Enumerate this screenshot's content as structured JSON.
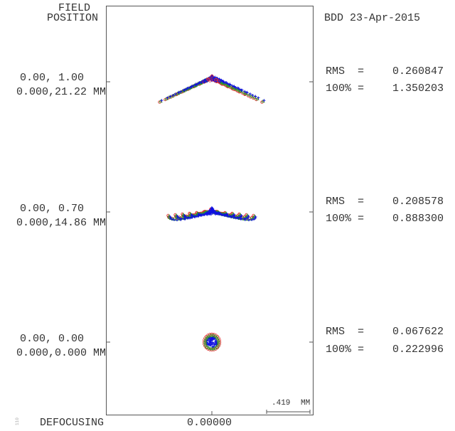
{
  "header": {
    "field_label_1": "FIELD",
    "field_label_2": "POSITION",
    "stamp": "BDD 23-Apr-2015"
  },
  "fields": [
    {
      "position": "0.00, 1.00",
      "coords": "0.000,21.22 MM",
      "rms_label": "RMS",
      "rms": "0.260847",
      "full_label": "100%",
      "full": "1.350203"
    },
    {
      "position": "0.00, 0.70",
      "coords": "0.000,14.86 MM",
      "rms_label": "RMS",
      "rms": "0.208578",
      "full_label": "100%",
      "full": "0.888300"
    },
    {
      "position": "0.00, 0.00",
      "coords": "0.000,0.000 MM",
      "rms_label": "RMS",
      "rms": "0.067622",
      "full_label": "100%",
      "full": "0.222996"
    }
  ],
  "eq": "=",
  "scale": {
    "value": ".419",
    "unit": "MM"
  },
  "footer": {
    "defocusing_label": "DEFOCUSING",
    "defocusing_value": "0.00000",
    "side_code": "110"
  },
  "colors": {
    "wave1": "#e03030",
    "wave2": "#2a9a2a",
    "wave3": "#1010e0",
    "frame": "#555555"
  }
}
